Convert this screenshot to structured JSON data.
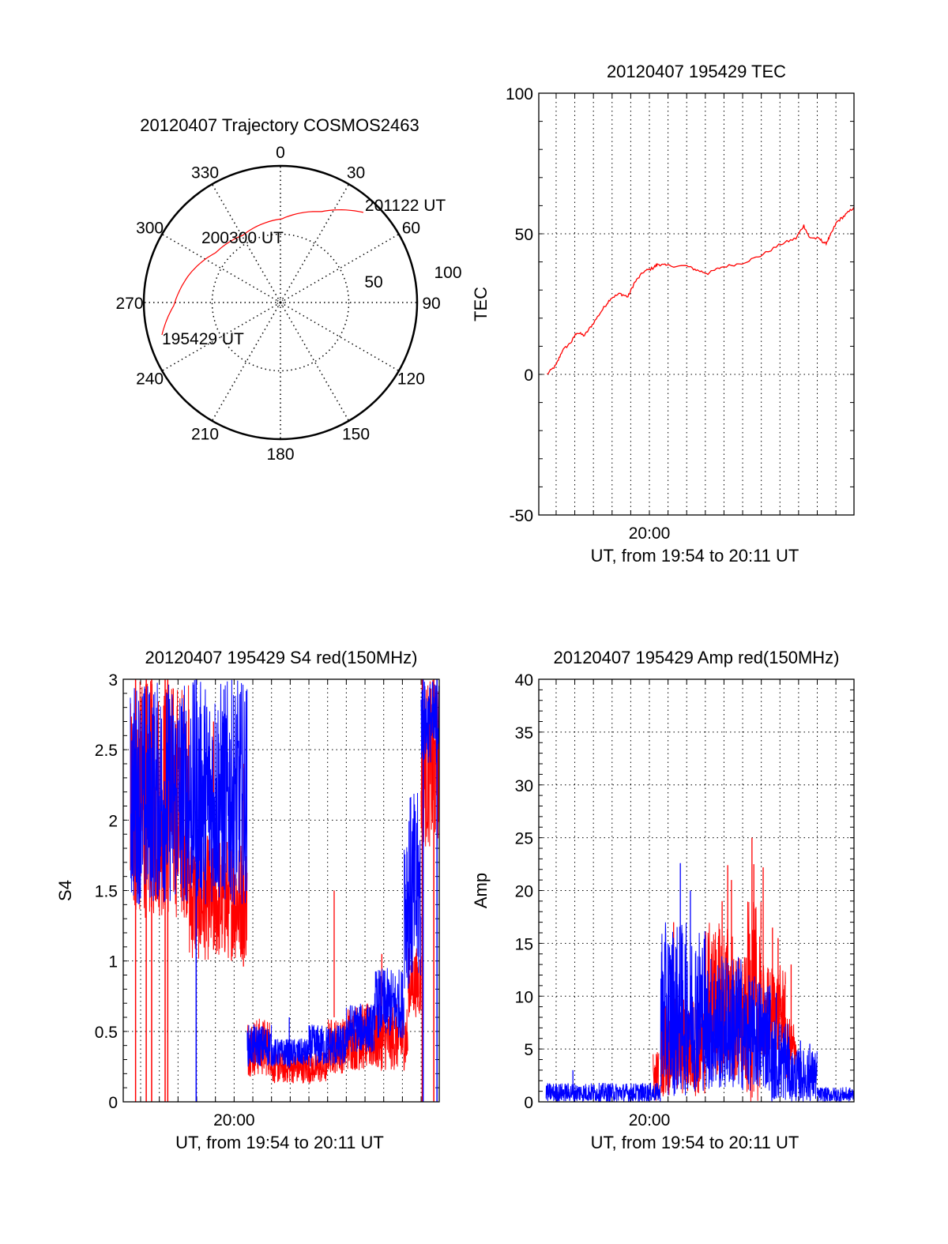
{
  "colors": {
    "red": "#ff0000",
    "blue": "#0000ff",
    "axis": "#000000"
  },
  "chart_data": [
    {
      "type": "polar",
      "title": "20120407 Trajectory COSMOS2463",
      "angle_labels": [
        "0",
        "30",
        "60",
        "90",
        "120",
        "150",
        "180",
        "210",
        "240",
        "270",
        "300",
        "330"
      ],
      "radial_labels": [
        "50",
        "100"
      ],
      "radial_range": [
        0,
        100
      ],
      "series": [
        {
          "name": "trajectory",
          "color": "red",
          "points": [
            [
              254.7,
              89.9
            ],
            [
              268.3,
              78.1
            ],
            [
              287.4,
              69.6
            ],
            [
              307.5,
              59.8
            ],
            [
              330.5,
              56.4
            ],
            [
              1.1,
              61.3
            ],
            [
              24.3,
              73.0
            ],
            [
              42.6,
              89.6
            ]
          ]
        }
      ],
      "annotations": [
        {
          "text": "195429 UT",
          "az": 254.7,
          "r": 89.9
        },
        {
          "text": "200300 UT",
          "az": 330.5,
          "r": 56.4
        },
        {
          "text": "201122 UT",
          "az": 42.6,
          "r": 89.6
        }
      ]
    },
    {
      "type": "line",
      "title": "20120407 195429 TEC",
      "xlabel": "UT, from 19:54 to 20:11 UT",
      "ylabel": "TEC",
      "x_units": "minutes after 19:54 UT",
      "xlim": [
        0.07,
        16.97
      ],
      "xtick_labels": [
        {
          "t": 6,
          "label": "20:00"
        }
      ],
      "ylim": [
        -50,
        100
      ],
      "yticks": [
        {
          "v": -50,
          "label": "-50"
        },
        {
          "v": 0,
          "label": "0"
        },
        {
          "v": 50,
          "label": "50"
        },
        {
          "v": 100,
          "label": "100"
        }
      ],
      "grid": true,
      "series": [
        {
          "name": "TEC",
          "color": "red",
          "x": [
            0.51,
            1.0,
            1.32,
            1.82,
            2.1,
            2.52,
            2.94,
            3.5,
            3.93,
            4.42,
            4.85,
            5.2,
            5.69,
            6.18,
            6.46,
            6.89,
            8.01,
            8.58,
            9.14,
            9.85,
            10.97,
            11.96,
            13.08,
            13.86,
            14.28,
            14.56,
            15.13,
            15.45,
            15.69,
            16.04,
            16.46,
            16.96
          ],
          "y": [
            0,
            3.3,
            8.3,
            11.6,
            14.9,
            13.8,
            17.7,
            23.2,
            27.1,
            28.7,
            27.6,
            32.6,
            36.5,
            37.8,
            39.2,
            38.7,
            38.5,
            37.0,
            35.9,
            38.1,
            39.6,
            42.2,
            46.4,
            48.4,
            53.0,
            48.8,
            48.1,
            46.4,
            49.2,
            54.1,
            56.4,
            59.4
          ]
        }
      ]
    },
    {
      "type": "line",
      "title": "20120407 195429 S4 red(150MHz)",
      "xlabel": "UT, from 19:54 to 20:11 UT",
      "ylabel": "S4",
      "x_units": "minutes after 19:54 UT",
      "xlim": [
        0.07,
        16.97
      ],
      "xtick_labels": [
        {
          "t": 6,
          "label": "20:00"
        }
      ],
      "ylim": [
        0,
        3
      ],
      "yticks": [
        {
          "v": 0,
          "label": "0"
        },
        {
          "v": 0.5,
          "label": "0.5"
        },
        {
          "v": 1,
          "label": "1"
        },
        {
          "v": 1.5,
          "label": "1.5"
        },
        {
          "v": 2,
          "label": "2"
        },
        {
          "v": 2.5,
          "label": "2.5"
        },
        {
          "v": 3,
          "label": "3"
        }
      ],
      "grid": true,
      "series": [
        {
          "name": "red",
          "color": "red",
          "envelope": [
            [
              0.45,
              3.6,
              1.3,
              3.0
            ],
            [
              3.6,
              6.7,
              1.0,
              1.9
            ],
            [
              6.7,
              8.0,
              0.18,
              0.6
            ],
            [
              8.0,
              11.0,
              0.13,
              0.36
            ],
            [
              11.0,
              12.0,
              0.2,
              0.6
            ],
            [
              12.0,
              15.3,
              0.22,
              0.7
            ],
            [
              15.3,
              16.0,
              0.6,
              1.1
            ],
            [
              16.0,
              16.95,
              1.8,
              3.0
            ]
          ],
          "spikes": [
            [
              4.2,
              2.8
            ],
            [
              4.9,
              2.7
            ],
            [
              6.5,
              2.4
            ],
            [
              11.35,
              1.5
            ],
            [
              13.9,
              1.05
            ]
          ],
          "dropouts": [
            0.73,
            1.3,
            1.59,
            2.31,
            2.45,
            16.06,
            16.68
          ]
        },
        {
          "name": "blue",
          "color": "blue",
          "envelope": [
            [
              0.45,
              6.7,
              1.4,
              3.0
            ],
            [
              6.7,
              8.0,
              0.25,
              0.55
            ],
            [
              8.0,
              10.0,
              0.25,
              0.45
            ],
            [
              10.0,
              12.0,
              0.25,
              0.55
            ],
            [
              12.0,
              13.5,
              0.35,
              0.7
            ],
            [
              13.5,
              15.1,
              0.45,
              0.95
            ],
            [
              15.1,
              16.0,
              0.8,
              2.2
            ],
            [
              16.0,
              16.95,
              2.4,
              3.0
            ]
          ],
          "spikes": [
            [
              8.95,
              0.6
            ]
          ],
          "dropouts": [
            3.97,
            16.11,
            16.85
          ]
        }
      ]
    },
    {
      "type": "line",
      "title": "20120407 195429 Amp red(150MHz)",
      "xlabel": "UT, from 19:54 to 20:11 UT",
      "ylabel": "Amp",
      "x_units": "minutes after 19:54 UT",
      "xlim": [
        0.07,
        16.97
      ],
      "xtick_labels": [
        {
          "t": 6,
          "label": "20:00"
        }
      ],
      "ylim": [
        0,
        40
      ],
      "yticks": [
        {
          "v": 0,
          "label": "0"
        },
        {
          "v": 5,
          "label": "5"
        },
        {
          "v": 10,
          "label": "10"
        },
        {
          "v": 15,
          "label": "15"
        },
        {
          "v": 20,
          "label": "20"
        },
        {
          "v": 25,
          "label": "25"
        },
        {
          "v": 30,
          "label": "30"
        },
        {
          "v": 35,
          "label": "35"
        },
        {
          "v": 40,
          "label": "40"
        }
      ],
      "grid": true,
      "series": [
        {
          "name": "red",
          "color": "red",
          "envelope": [
            [
              6.2,
              6.5,
              0,
              5
            ],
            [
              6.6,
              9.0,
              0.5,
              10
            ],
            [
              9.0,
              10.5,
              2,
              17
            ],
            [
              10.5,
              11.2,
              1,
              14
            ],
            [
              11.2,
              12.0,
              0,
              19
            ],
            [
              12.0,
              13.3,
              4,
              13
            ],
            [
              13.3,
              13.9,
              2,
              8
            ]
          ],
          "spikes": [
            [
              7.3,
              17
            ],
            [
              9.9,
              19
            ],
            [
              10.2,
              22.4
            ],
            [
              10.4,
              21
            ],
            [
              11.5,
              25
            ],
            [
              11.6,
              22.5
            ],
            [
              12.1,
              22.2
            ],
            [
              12.6,
              16.5
            ],
            [
              12.9,
              15.5
            ],
            [
              13.6,
              13
            ]
          ],
          "dropouts": []
        },
        {
          "name": "blue",
          "color": "blue",
          "envelope": [
            [
              0.46,
              6.6,
              0,
              1.8
            ],
            [
              6.6,
              8.0,
              0.5,
              17
            ],
            [
              8.0,
              9.0,
              1,
              17
            ],
            [
              9.0,
              11.0,
              1,
              14
            ],
            [
              11.0,
              12.5,
              1,
              12
            ],
            [
              12.5,
              13.5,
              0,
              8
            ],
            [
              13.5,
              15.0,
              0,
              5
            ],
            [
              15.0,
              16.96,
              0,
              1.4
            ]
          ],
          "spikes": [
            [
              1.9,
              3
            ],
            [
              7.66,
              22.6
            ],
            [
              8.2,
              20
            ],
            [
              7.1,
              12.2
            ],
            [
              7.4,
              12.3
            ],
            [
              12.8,
              10.3
            ],
            [
              14.1,
              5.8
            ],
            [
              14.6,
              5.5
            ]
          ],
          "dropouts": []
        }
      ]
    }
  ]
}
